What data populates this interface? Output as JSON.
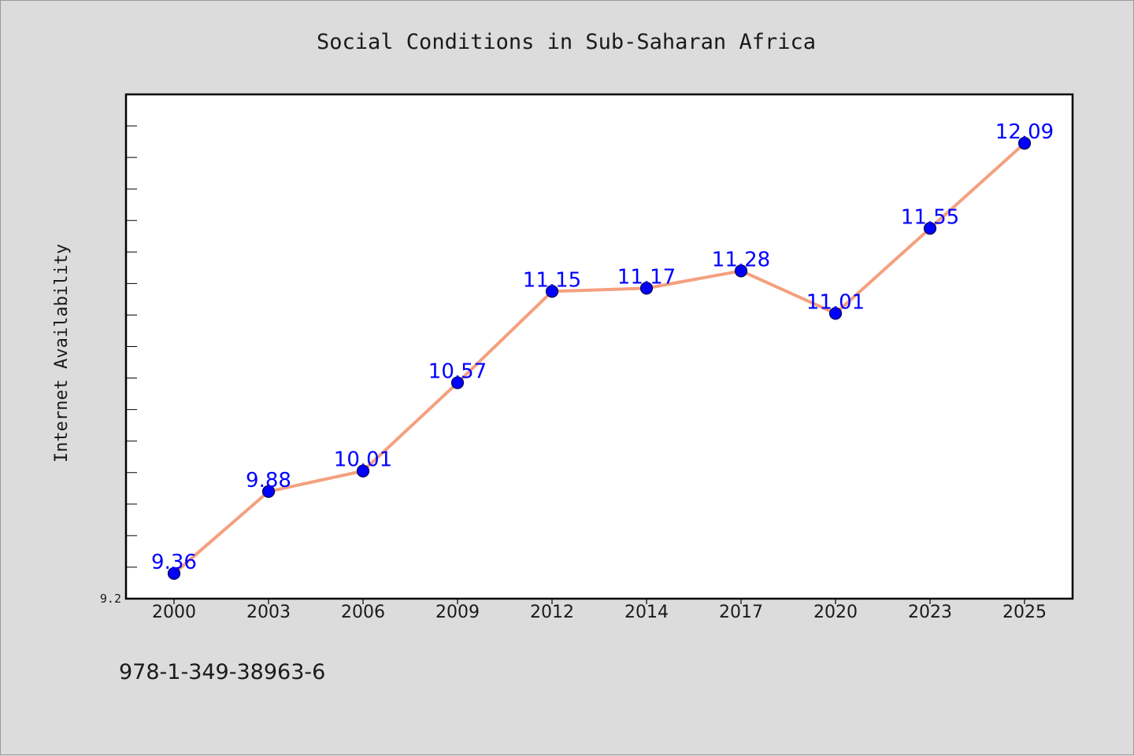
{
  "chart_data": {
    "type": "line",
    "title": "Social Conditions in Sub-Saharan Africa",
    "xlabel": "",
    "ylabel": "Internet Availability",
    "categories": [
      "2000",
      "2003",
      "2006",
      "2009",
      "2012",
      "2014",
      "2017",
      "2020",
      "2023",
      "2025"
    ],
    "series": [
      {
        "values": [
          9.36,
          9.88,
          10.01,
          10.57,
          11.15,
          11.17,
          11.28,
          11.01,
          11.55,
          12.09
        ]
      }
    ],
    "data_labels": [
      "9.36",
      "9.88",
      "10.01",
      "10.57",
      "11.15",
      "11.17",
      "11.28",
      "11.01",
      "11.55",
      "12.09"
    ],
    "ylim": [
      9.2,
      12.4
    ],
    "y_tick_labels": [
      "9.2"
    ],
    "y_minor_tick_step": 0.2,
    "grid": false,
    "legend": "none",
    "colors": {
      "line": "#f4a07e",
      "marker": "#0000ff",
      "data_label": "#0000ff",
      "background": "#dcdcdc",
      "plot_background": "#ffffff"
    }
  },
  "footer": {
    "text": "978-1-349-38963-6"
  }
}
